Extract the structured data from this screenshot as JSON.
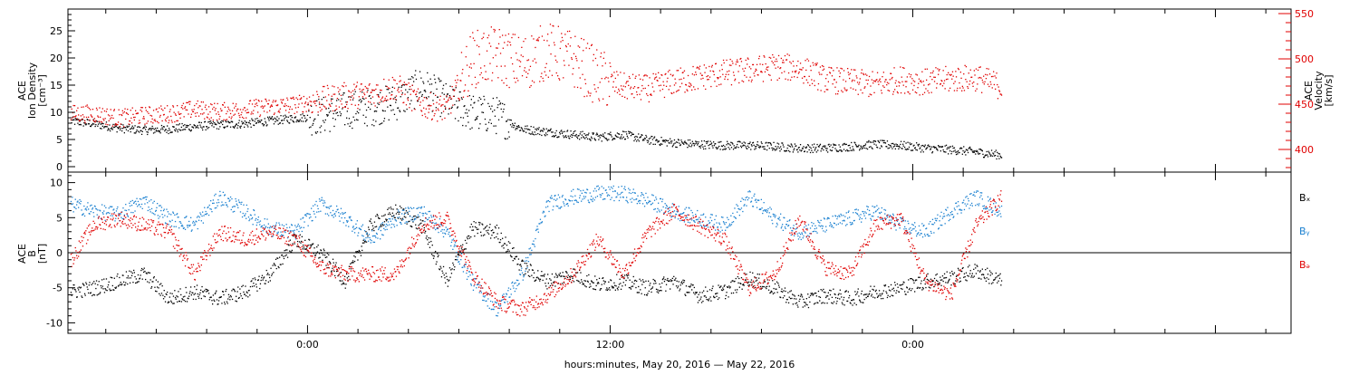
{
  "colors": {
    "density": "#000000",
    "velocity": "#e00000",
    "bx": "#000000",
    "by": "#1a80d0",
    "bz": "#e00000",
    "axis": "#000000",
    "axis_right": "#e00000"
  },
  "chart_data": [
    {
      "type": "scatter",
      "panel": "top",
      "ylabel_left_lines": [
        "ACE",
        "Ion Density",
        "[cm⁻³]"
      ],
      "ylabel_right_lines": [
        "ACE",
        "Velocity",
        "[km/s]"
      ],
      "x_range_hours": [
        -9.5,
        39
      ],
      "ylim_left": [
        -1,
        29
      ],
      "yticks_left": [
        0,
        5,
        10,
        15,
        20,
        25
      ],
      "ylim_right": [
        375,
        555
      ],
      "yticks_right": [
        400,
        450,
        500,
        550
      ],
      "series": [
        {
          "axis": "left",
          "color_key": "density",
          "x": [
            -9.4,
            -8.5,
            -7.5,
            -6.5,
            -5.5,
            -4.5,
            -3.5,
            -2.5,
            -1.5,
            -0.5,
            0.5,
            1.5,
            2.5,
            3.5,
            4.5,
            5.5,
            6.5,
            7.5,
            8.5,
            9.5,
            10.5,
            11.5,
            12.5,
            13.5,
            14.5,
            15.5,
            16.5,
            17.5,
            18.5,
            19.5,
            20.5,
            21.5,
            22.5,
            23.5,
            24.5,
            25.5,
            26.5,
            27.5
          ],
          "y": [
            8.5,
            8,
            7.2,
            6.8,
            7,
            7.5,
            7.8,
            8,
            8.5,
            9,
            9.5,
            10.5,
            11,
            12,
            15,
            12,
            10,
            9.5,
            7,
            6.5,
            6,
            5.5,
            6,
            5,
            4.5,
            4.2,
            4,
            4,
            3.8,
            3.5,
            3.5,
            3.8,
            4.2,
            4,
            3.5,
            3.2,
            2.8,
            2.2
          ]
        },
        {
          "axis": "right",
          "color_key": "velocity",
          "x": [
            -9.4,
            -8.5,
            -7.5,
            -6.5,
            -5.5,
            -4.5,
            -3.5,
            -2.5,
            -1.5,
            -0.5,
            0.5,
            1.5,
            2.5,
            3.5,
            4.5,
            5.5,
            6.5,
            7.5,
            8.5,
            9.5,
            10.5,
            11.5,
            12.5,
            13.5,
            14.5,
            15.5,
            16.5,
            17.5,
            18.5,
            19.5,
            20.5,
            21.5,
            22.5,
            23.5,
            24.5,
            25.5,
            26.5,
            27.5
          ],
          "y": [
            440,
            440,
            435,
            438,
            440,
            445,
            442,
            445,
            448,
            450,
            455,
            460,
            462,
            470,
            450,
            445,
            500,
            505,
            495,
            510,
            500,
            480,
            470,
            468,
            475,
            480,
            485,
            488,
            492,
            490,
            478,
            475,
            472,
            478,
            475,
            478,
            480,
            470
          ]
        }
      ]
    },
    {
      "type": "scatter",
      "panel": "bottom",
      "ylabel_left_lines": [
        "ACE",
        "B",
        "[nT]"
      ],
      "x_range_hours": [
        -9.5,
        39
      ],
      "ylim": [
        -11.5,
        11.5
      ],
      "yticks": [
        -10,
        -5,
        0,
        5,
        10
      ],
      "legend": [
        "Bₓ",
        "Bᵧ",
        "Bₔ"
      ],
      "legend_placement": "right",
      "series": [
        {
          "color_key": "bx",
          "x": [
            -9.4,
            -8.5,
            -7.5,
            -6.5,
            -5.5,
            -4.5,
            -3.5,
            -2.5,
            -1.5,
            -0.5,
            0.5,
            1.5,
            2.5,
            3.5,
            4.5,
            5.5,
            6.5,
            7.5,
            8.5,
            9.5,
            10.5,
            11.5,
            12.5,
            13.5,
            14.5,
            15.5,
            16.5,
            17.5,
            18.5,
            19.5,
            20.5,
            21.5,
            22.5,
            23.5,
            24.5,
            25.5,
            26.5,
            27.5
          ],
          "y": [
            -5.5,
            -5,
            -4,
            -3,
            -6.5,
            -5.5,
            -6.5,
            -5.5,
            -3,
            2,
            0,
            -4,
            4,
            6,
            4,
            -4,
            3.5,
            3,
            -2,
            -4,
            -3,
            -4.5,
            -4,
            -5,
            -4,
            -6,
            -5.5,
            -3.5,
            -5,
            -7,
            -6,
            -6.5,
            -5.5,
            -5,
            -4,
            -3.5,
            -2.5,
            -4
          ]
        },
        {
          "color_key": "by",
          "x": [
            -9.4,
            -8.5,
            -7.5,
            -6.5,
            -5.5,
            -4.5,
            -3.5,
            -2.5,
            -1.5,
            -0.5,
            0.5,
            1.5,
            2.5,
            3.5,
            4.5,
            5.5,
            6.5,
            7.5,
            8.5,
            9.5,
            10.5,
            11.5,
            12.5,
            13.5,
            14.5,
            15.5,
            16.5,
            17.5,
            18.5,
            19.5,
            20.5,
            21.5,
            22.5,
            23.5,
            24.5,
            25.5,
            26.5,
            27.5
          ],
          "y": [
            7,
            6,
            5.5,
            7.5,
            5,
            4,
            8,
            6,
            3.5,
            3,
            7,
            5,
            2,
            5,
            6,
            3,
            -4,
            -8,
            -3,
            7,
            8,
            8.5,
            8.5,
            7.5,
            6,
            5,
            4,
            8,
            5,
            3,
            4,
            5,
            6,
            4,
            3,
            6,
            8,
            6
          ]
        },
        {
          "color_key": "bz",
          "x": [
            -9.4,
            -8.5,
            -7.5,
            -6.5,
            -5.5,
            -4.5,
            -3.5,
            -2.5,
            -1.5,
            -0.5,
            0.5,
            1.5,
            2.5,
            3.5,
            4.5,
            5.5,
            6.5,
            7.5,
            8.5,
            9.5,
            10.5,
            11.5,
            12.5,
            13.5,
            14.5,
            15.5,
            16.5,
            17.5,
            18.5,
            19.5,
            20.5,
            21.5,
            22.5,
            23.5,
            24.5,
            25.5,
            26.5,
            27.5
          ],
          "y": [
            -1,
            4,
            5,
            4,
            3,
            -3,
            3,
            2,
            3,
            2,
            -2,
            -3,
            -3,
            -3,
            4,
            5,
            -3,
            -7,
            -8,
            -6,
            -3,
            2,
            -3,
            3,
            6,
            4,
            2,
            -5,
            -3,
            5,
            -2,
            -3,
            4,
            5,
            -4,
            -6,
            4,
            8
          ]
        }
      ]
    }
  ],
  "x_axis": {
    "label": "hours:minutes, May 20, 2016 — May 22, 2016",
    "tick_labels": [
      {
        "hour": 0,
        "label": "0:00"
      },
      {
        "hour": 12,
        "label": "12:00"
      },
      {
        "hour": 24,
        "label": "0:00"
      }
    ],
    "minor_step_hours": 2
  }
}
